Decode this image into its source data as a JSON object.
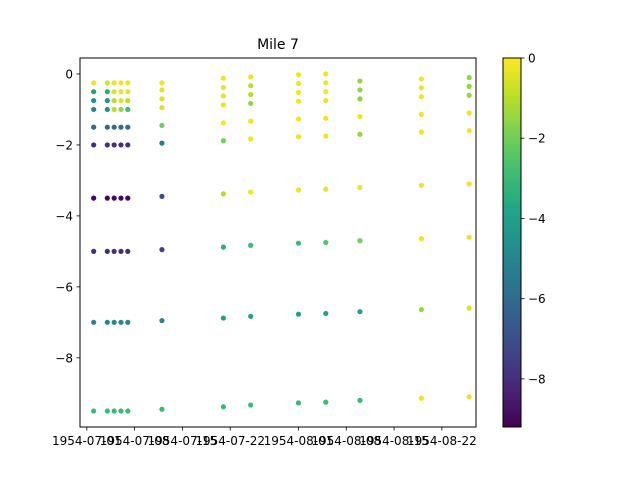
{
  "chart_data": {
    "type": "scatter",
    "title": "Mile 7",
    "xlabel": "",
    "ylabel": "",
    "x_ticks": [
      "1954-07-01",
      "1954-07-08",
      "1954-07-15",
      "1954-07-22",
      "1954-08-01",
      "1954-08-08",
      "1954-08-15",
      "1954-08-22"
    ],
    "x_tick_dates": [
      "1954-07-01",
      "1954-07-08",
      "1954-07-15",
      "1954-07-22",
      "1954-08-01",
      "1954-08-08",
      "1954-08-15",
      "1954-08-22"
    ],
    "xlim": [
      "1954-06-30",
      "1954-08-27"
    ],
    "ylim": [
      -9.95,
      0.45
    ],
    "y_ticks": [
      0,
      -2,
      -4,
      -6,
      -8
    ],
    "y_tick_labels": [
      "0",
      "−2",
      "−4",
      "−6",
      "−8"
    ],
    "colorbar": {
      "colormap": "viridis",
      "range": [
        -9.2,
        0
      ],
      "ticks": [
        0,
        -2,
        -4,
        -6,
        -8
      ],
      "tick_labels": [
        "0",
        "−2",
        "−4",
        "−6",
        "−8"
      ]
    },
    "grid": false,
    "legend": "none",
    "columns": [
      {
        "date": "1954-07-02",
        "points": [
          [
            -0.25,
            -0.25
          ],
          [
            -0.5,
            -4.0
          ],
          [
            -0.75,
            -4.5
          ],
          [
            -1.0,
            -5.0
          ],
          [
            -1.5,
            -6.0
          ],
          [
            -2.0,
            -8.0
          ],
          [
            -3.5,
            -9.0
          ],
          [
            -5.0,
            -8.0
          ],
          [
            -7.0,
            -5.0
          ],
          [
            -9.5,
            -3.0
          ]
        ]
      },
      {
        "date": "1954-07-04",
        "points": [
          [
            -0.25,
            -0.5
          ],
          [
            -0.5,
            -3.5
          ],
          [
            -0.75,
            -4.5
          ],
          [
            -1.0,
            -4.5
          ],
          [
            -1.5,
            -6.0
          ],
          [
            -2.0,
            -8.0
          ],
          [
            -3.5,
            -9.0
          ],
          [
            -5.0,
            -8.0
          ],
          [
            -7.0,
            -5.0
          ],
          [
            -9.5,
            -3.0
          ]
        ]
      },
      {
        "date": "1954-07-05",
        "points": [
          [
            -0.25,
            -0.2
          ],
          [
            -0.5,
            -0.5
          ],
          [
            -0.75,
            -1.0
          ],
          [
            -1.0,
            -1.0
          ],
          [
            -1.5,
            -6.0
          ],
          [
            -2.0,
            -8.0
          ],
          [
            -3.5,
            -9.0
          ],
          [
            -5.0,
            -8.0
          ],
          [
            -7.0,
            -5.0
          ],
          [
            -9.5,
            -3.0
          ]
        ]
      },
      {
        "date": "1954-07-06",
        "points": [
          [
            -0.25,
            -0.2
          ],
          [
            -0.5,
            -0.3
          ],
          [
            -0.75,
            -0.5
          ],
          [
            -1.0,
            -1.5
          ],
          [
            -1.5,
            -6.0
          ],
          [
            -2.0,
            -8.0
          ],
          [
            -3.5,
            -9.0
          ],
          [
            -5.0,
            -8.0
          ],
          [
            -7.0,
            -5.0
          ],
          [
            -9.5,
            -3.0
          ]
        ]
      },
      {
        "date": "1954-07-07",
        "points": [
          [
            -0.25,
            -0.2
          ],
          [
            -0.5,
            -0.3
          ],
          [
            -0.75,
            -1.0
          ],
          [
            -1.0,
            -3.0
          ],
          [
            -1.5,
            -6.0
          ],
          [
            -2.0,
            -8.0
          ],
          [
            -3.5,
            -9.0
          ],
          [
            -5.0,
            -8.0
          ],
          [
            -7.0,
            -5.0
          ],
          [
            -9.5,
            -3.0
          ]
        ]
      },
      {
        "date": "1954-07-12",
        "points": [
          [
            -0.25,
            -0.2
          ],
          [
            -0.45,
            -0.3
          ],
          [
            -0.7,
            -0.5
          ],
          [
            -0.95,
            -0.5
          ],
          [
            -1.45,
            -2.0
          ],
          [
            -1.95,
            -5.5
          ],
          [
            -3.45,
            -7.0
          ],
          [
            -4.95,
            -7.5
          ],
          [
            -6.95,
            -5.0
          ],
          [
            -9.45,
            -3.0
          ]
        ]
      },
      {
        "date": "1954-07-21",
        "points": [
          [
            -0.12,
            -0.2
          ],
          [
            -0.38,
            -0.3
          ],
          [
            -0.62,
            -0.3
          ],
          [
            -0.87,
            -0.3
          ],
          [
            -1.38,
            -0.2
          ],
          [
            -1.88,
            -2.0
          ],
          [
            -3.38,
            -1.0
          ],
          [
            -4.88,
            -3.5
          ],
          [
            -6.88,
            -4.0
          ],
          [
            -9.38,
            -3.0
          ]
        ]
      },
      {
        "date": "1954-07-25",
        "points": [
          [
            -0.08,
            -0.2
          ],
          [
            -0.33,
            -1.0
          ],
          [
            -0.58,
            -1.0
          ],
          [
            -0.83,
            -1.5
          ],
          [
            -1.33,
            -0.2
          ],
          [
            -1.83,
            -0.2
          ],
          [
            -3.33,
            -0.2
          ],
          [
            -4.83,
            -3.0
          ],
          [
            -6.83,
            -4.0
          ],
          [
            -9.33,
            -3.0
          ]
        ]
      },
      {
        "date": "1954-08-01",
        "points": [
          [
            -0.02,
            -0.2
          ],
          [
            -0.27,
            -0.2
          ],
          [
            -0.52,
            -0.2
          ],
          [
            -0.77,
            -0.2
          ],
          [
            -1.27,
            -0.2
          ],
          [
            -1.77,
            -0.2
          ],
          [
            -3.27,
            -0.2
          ],
          [
            -4.77,
            -3.0
          ],
          [
            -6.77,
            -4.0
          ],
          [
            -9.27,
            -3.0
          ]
        ]
      },
      {
        "date": "1954-08-05",
        "points": [
          [
            0.0,
            -0.2
          ],
          [
            -0.25,
            -0.2
          ],
          [
            -0.5,
            -0.2
          ],
          [
            -0.75,
            -0.2
          ],
          [
            -1.25,
            -0.2
          ],
          [
            -1.75,
            -0.2
          ],
          [
            -3.25,
            -0.2
          ],
          [
            -4.75,
            -2.5
          ],
          [
            -6.75,
            -4.0
          ],
          [
            -9.25,
            -3.0
          ]
        ]
      },
      {
        "date": "1954-08-10",
        "points": [
          [
            -0.2,
            -1.5
          ],
          [
            -0.45,
            -1.5
          ],
          [
            -0.7,
            -1.7
          ],
          [
            -1.2,
            -0.2
          ],
          [
            -1.7,
            -1.5
          ],
          [
            -3.2,
            -0.2
          ],
          [
            -4.7,
            -2.0
          ],
          [
            -6.7,
            -4.0
          ],
          [
            -9.2,
            -3.0
          ]
        ]
      },
      {
        "date": "1954-08-19",
        "points": [
          [
            -0.14,
            -0.2
          ],
          [
            -0.39,
            -0.2
          ],
          [
            -0.64,
            -0.2
          ],
          [
            -1.14,
            -0.2
          ],
          [
            -1.64,
            -0.2
          ],
          [
            -3.14,
            -0.2
          ],
          [
            -4.64,
            -0.2
          ],
          [
            -6.64,
            -1.5
          ],
          [
            -9.14,
            -0.2
          ]
        ]
      },
      {
        "date": "1954-08-26",
        "points": [
          [
            -0.1,
            -1.5
          ],
          [
            -0.35,
            -1.5
          ],
          [
            -0.6,
            -1.5
          ],
          [
            -1.1,
            -0.2
          ],
          [
            -1.6,
            -0.2
          ],
          [
            -3.1,
            -0.2
          ],
          [
            -4.6,
            -0.2
          ],
          [
            -6.6,
            -0.5
          ],
          [
            -9.1,
            -0.2
          ]
        ]
      }
    ]
  }
}
